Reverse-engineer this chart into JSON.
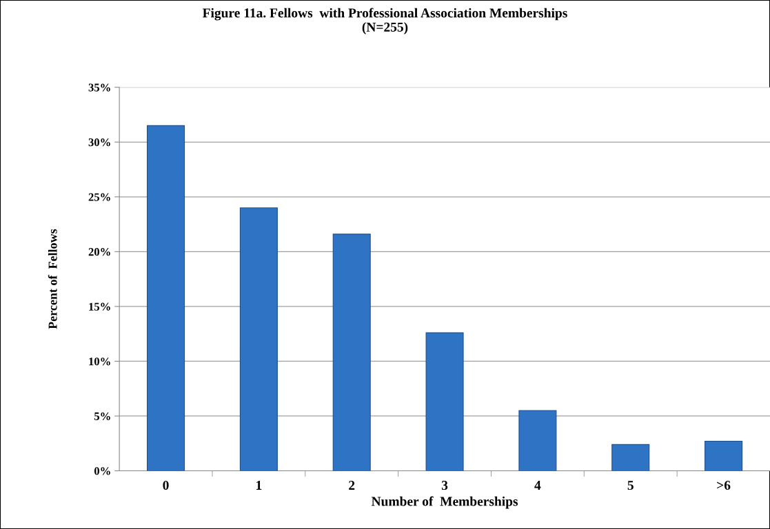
{
  "chart_data": {
    "type": "bar",
    "title": "Figure 11a. Fellows  with Professional Association Memberships\n(N=255)",
    "xlabel": "Number of  Memberships",
    "ylabel": "Percent of  Fellows",
    "categories": [
      "0",
      "1",
      "2",
      "3",
      "4",
      "5",
      ">6"
    ],
    "values": [
      31.5,
      24.0,
      21.6,
      12.6,
      5.5,
      2.4,
      2.7
    ],
    "color": "#2f74c4",
    "ylim": [
      0,
      35
    ],
    "yticks": [
      {
        "value": 0,
        "label": "0%"
      },
      {
        "value": 5,
        "label": "5%"
      },
      {
        "value": 10,
        "label": "10%"
      },
      {
        "value": 15,
        "label": "15%"
      },
      {
        "value": 20,
        "label": "20%"
      },
      {
        "value": 25,
        "label": "25%"
      },
      {
        "value": 30,
        "label": "30%"
      },
      {
        "value": 35,
        "label": "35%"
      }
    ],
    "grid": "y",
    "legend": false
  }
}
